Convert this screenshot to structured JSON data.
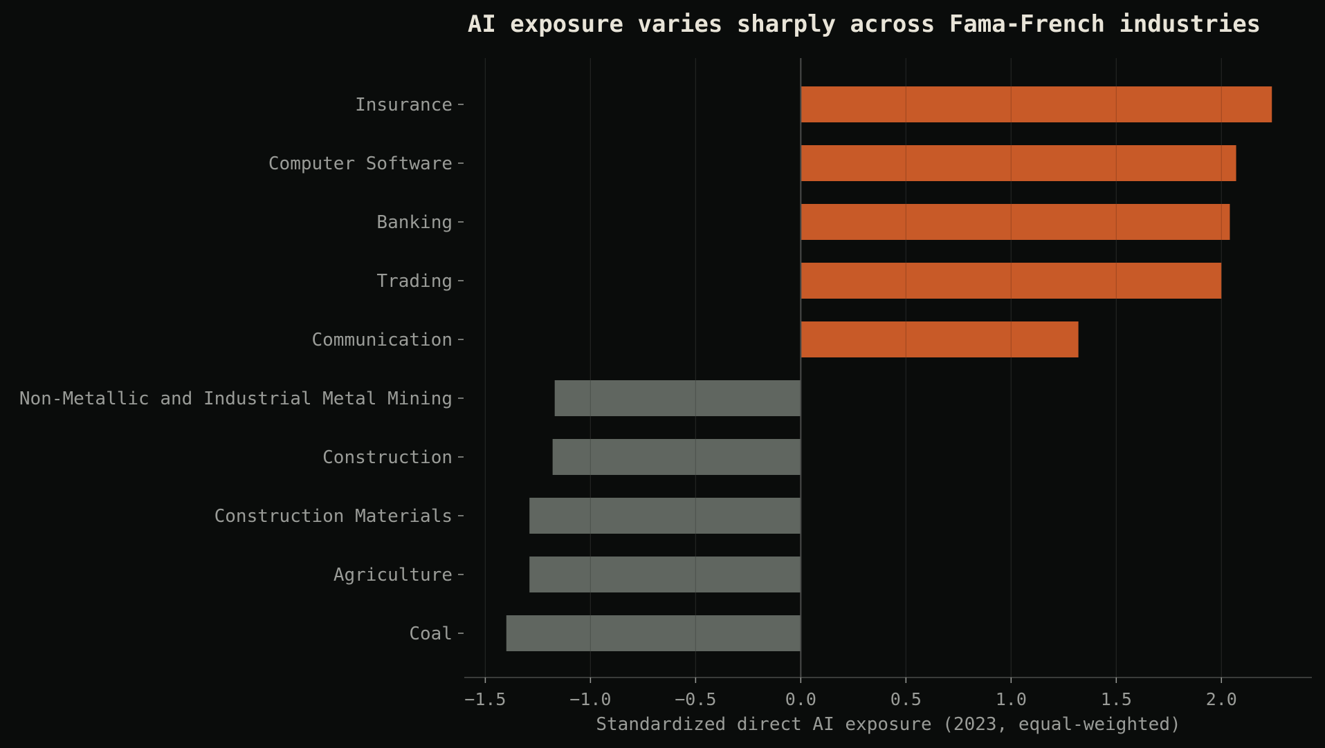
{
  "chart_data": {
    "type": "bar",
    "orientation": "horizontal",
    "title": "AI exposure varies sharply across Fama-French industries",
    "xlabel": "Standardized direct AI exposure (2023, equal-weighted)",
    "ylabel": "",
    "xlim": [
      -1.6,
      2.43
    ],
    "xticks": [
      "−1.5",
      "−1.0",
      "−0.5",
      "0.0",
      "0.5",
      "1.0",
      "1.5",
      "2.0"
    ],
    "xtick_values": [
      -1.5,
      -1.0,
      -0.5,
      0.0,
      0.5,
      1.0,
      1.5,
      2.0
    ],
    "grid": "vertical",
    "categories": [
      "Insurance",
      "Computer Software",
      "Banking",
      "Trading",
      "Communication",
      "Non-Metallic and Industrial Metal Mining",
      "Construction",
      "Construction Materials",
      "Agriculture",
      "Coal"
    ],
    "values": [
      2.24,
      2.07,
      2.04,
      2.0,
      1.32,
      -1.17,
      -1.18,
      -1.29,
      -1.29,
      -1.4
    ],
    "colors": {
      "positive": "#c85a28",
      "negative": "#606660",
      "background": "#0a0c0b",
      "zero_line": "#4a4c4a",
      "grid": "#2a2c2a"
    }
  }
}
